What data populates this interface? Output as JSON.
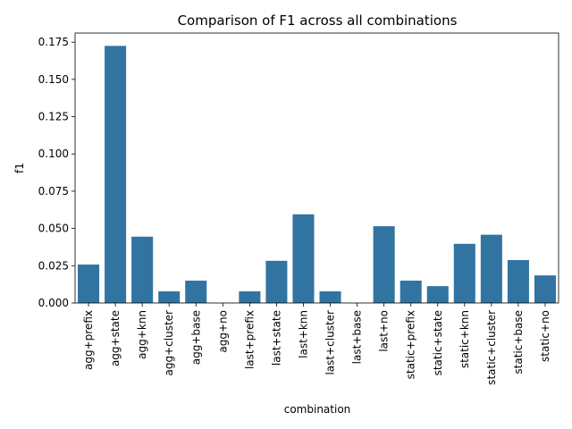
{
  "chart_data": {
    "type": "bar",
    "title": "Comparison of F1 across all combinations",
    "xlabel": "combination",
    "ylabel": "f1",
    "categories": [
      "agg+prefix",
      "agg+state",
      "agg+knn",
      "agg+cluster",
      "agg+base",
      "agg+no",
      "last+prefix",
      "last+state",
      "last+knn",
      "last+cluster",
      "last+base",
      "last+no",
      "static+prefix",
      "static+state",
      "static+knn",
      "static+cluster",
      "static+base",
      "static+no"
    ],
    "values": [
      0.0258,
      0.1725,
      0.0445,
      0.0078,
      0.015,
      0.0,
      0.0078,
      0.0283,
      0.0595,
      0.0078,
      0.0,
      0.0515,
      0.015,
      0.0113,
      0.0397,
      0.0458,
      0.0288,
      0.0185
    ],
    "ylim": [
      0,
      0.1811
    ],
    "yticks": [
      0.0,
      0.025,
      0.05,
      0.075,
      0.1,
      0.125,
      0.15,
      0.175
    ],
    "ytick_labels": [
      "0.000",
      "0.025",
      "0.050",
      "0.075",
      "0.100",
      "0.125",
      "0.150",
      "0.175"
    ],
    "bar_color": "#3274a1",
    "grid": false
  }
}
